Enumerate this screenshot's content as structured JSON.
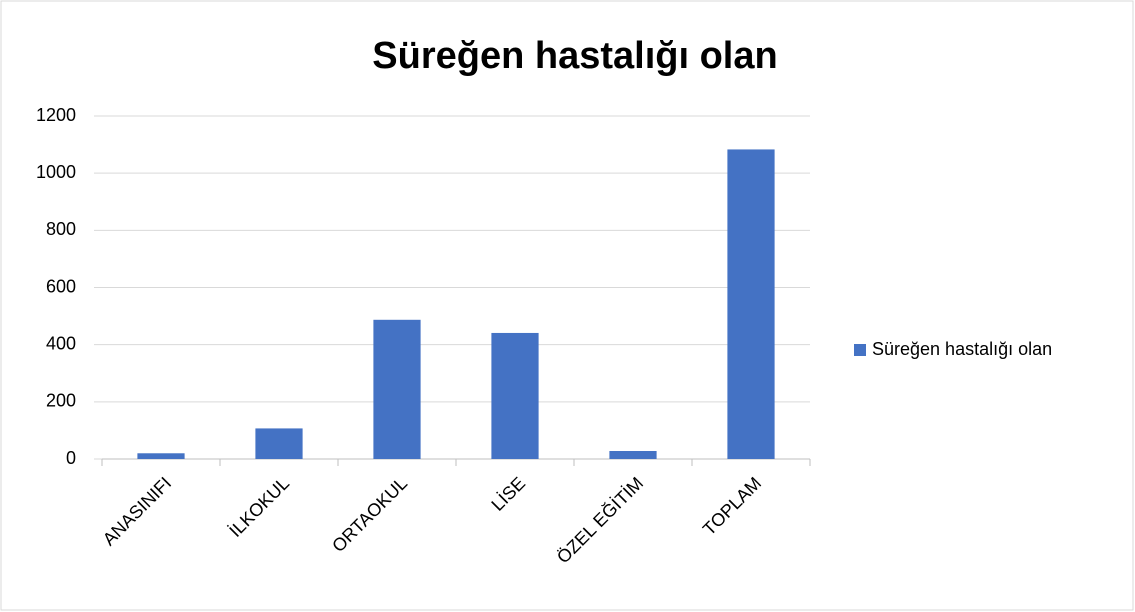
{
  "chart_data": {
    "type": "bar",
    "title": "Süreğen hastalığı olan",
    "categories": [
      "ANASINIFI",
      "İLKOKUL",
      "ORTAOKUL",
      "LİSE",
      "ÖZEL EĞİTİM",
      "TOPLAM"
    ],
    "series": [
      {
        "name": "Süreğen hastalığı olan",
        "color": "#4472c4",
        "values": [
          20,
          107,
          487,
          441,
          28,
          1083
        ]
      }
    ],
    "ylim": [
      0,
      1200
    ],
    "yticks": [
      0,
      200,
      400,
      600,
      800,
      1000,
      1200
    ],
    "grid": true,
    "legend": "right"
  }
}
